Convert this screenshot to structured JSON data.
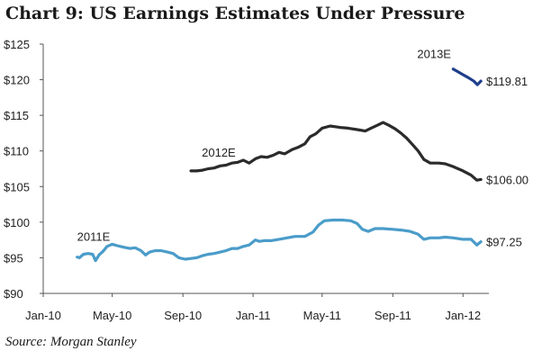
{
  "title": "Chart 9:  US Earnings Estimates Under Pressure",
  "source": "Source: Morgan Stanley",
  "chart_data": {
    "type": "line",
    "title": "Chart 9:  US Earnings Estimates Under Pressure",
    "xlabel": "",
    "ylabel": "",
    "x_ticks": [
      "Jan-10",
      "May-10",
      "Sep-10",
      "Jan-11",
      "May-11",
      "Sep-11",
      "Jan-12"
    ],
    "x_tick_dates": [
      "2010-01-01",
      "2010-05-01",
      "2010-09-01",
      "2011-01-01",
      "2011-05-01",
      "2011-09-01",
      "2012-01-01"
    ],
    "xlim": [
      "2010-01-01",
      "2012-02-15"
    ],
    "y_ticks": [
      "$90",
      "$95",
      "$100",
      "$105",
      "$110",
      "$115",
      "$120",
      "$125"
    ],
    "ylim": [
      90,
      125
    ],
    "grid": false,
    "series": [
      {
        "name": "2011E",
        "color": "#4a9cc9",
        "end_label": "$97.25",
        "points": [
          [
            "2010-03-01",
            95.1
          ],
          [
            "2010-03-05",
            95.0
          ],
          [
            "2010-03-12",
            95.5
          ],
          [
            "2010-03-20",
            95.6
          ],
          [
            "2010-03-28",
            95.5
          ],
          [
            "2010-04-02",
            94.6
          ],
          [
            "2010-04-08",
            95.4
          ],
          [
            "2010-04-15",
            95.9
          ],
          [
            "2010-04-22",
            96.6
          ],
          [
            "2010-05-01",
            96.9
          ],
          [
            "2010-05-10",
            96.7
          ],
          [
            "2010-05-20",
            96.5
          ],
          [
            "2010-06-01",
            96.3
          ],
          [
            "2010-06-10",
            96.4
          ],
          [
            "2010-06-20",
            96.0
          ],
          [
            "2010-06-28",
            95.4
          ],
          [
            "2010-07-05",
            95.8
          ],
          [
            "2010-07-15",
            96.0
          ],
          [
            "2010-07-25",
            96.0
          ],
          [
            "2010-08-05",
            95.8
          ],
          [
            "2010-08-15",
            95.6
          ],
          [
            "2010-08-25",
            95.0
          ],
          [
            "2010-09-05",
            94.8
          ],
          [
            "2010-09-15",
            94.9
          ],
          [
            "2010-09-25",
            95.0
          ],
          [
            "2010-10-05",
            95.3
          ],
          [
            "2010-10-15",
            95.5
          ],
          [
            "2010-10-25",
            95.6
          ],
          [
            "2010-11-05",
            95.8
          ],
          [
            "2010-11-15",
            96.0
          ],
          [
            "2010-11-25",
            96.3
          ],
          [
            "2010-12-05",
            96.3
          ],
          [
            "2010-12-15",
            96.6
          ],
          [
            "2010-12-25",
            96.8
          ],
          [
            "2011-01-05",
            97.5
          ],
          [
            "2011-01-12",
            97.3
          ],
          [
            "2011-01-20",
            97.4
          ],
          [
            "2011-02-01",
            97.4
          ],
          [
            "2011-02-15",
            97.6
          ],
          [
            "2011-03-01",
            97.8
          ],
          [
            "2011-03-15",
            98.0
          ],
          [
            "2011-04-01",
            98.0
          ],
          [
            "2011-04-15",
            98.6
          ],
          [
            "2011-04-25",
            99.6
          ],
          [
            "2011-05-05",
            100.2
          ],
          [
            "2011-05-20",
            100.3
          ],
          [
            "2011-06-05",
            100.3
          ],
          [
            "2011-06-20",
            100.2
          ],
          [
            "2011-07-01",
            99.8
          ],
          [
            "2011-07-10",
            99.0
          ],
          [
            "2011-07-20",
            98.7
          ],
          [
            "2011-08-01",
            99.1
          ],
          [
            "2011-08-15",
            99.1
          ],
          [
            "2011-09-01",
            99.0
          ],
          [
            "2011-09-15",
            98.9
          ],
          [
            "2011-10-01",
            98.7
          ],
          [
            "2011-10-15",
            98.3
          ],
          [
            "2011-10-25",
            97.6
          ],
          [
            "2011-11-05",
            97.8
          ],
          [
            "2011-11-20",
            97.8
          ],
          [
            "2011-12-01",
            97.9
          ],
          [
            "2011-12-15",
            97.8
          ],
          [
            "2012-01-01",
            97.6
          ],
          [
            "2012-01-15",
            97.6
          ],
          [
            "2012-01-25",
            96.8
          ],
          [
            "2012-02-01",
            97.25
          ]
        ]
      },
      {
        "name": "2012E",
        "color": "#2b2b2b",
        "end_label": "$106.00",
        "points": [
          [
            "2010-09-15",
            107.2
          ],
          [
            "2010-09-25",
            107.2
          ],
          [
            "2010-10-05",
            107.3
          ],
          [
            "2010-10-15",
            107.5
          ],
          [
            "2010-10-25",
            107.6
          ],
          [
            "2010-11-05",
            107.9
          ],
          [
            "2010-11-15",
            108.0
          ],
          [
            "2010-11-25",
            108.3
          ],
          [
            "2010-12-05",
            108.4
          ],
          [
            "2010-12-15",
            108.7
          ],
          [
            "2010-12-25",
            108.3
          ],
          [
            "2011-01-05",
            108.9
          ],
          [
            "2011-01-15",
            109.2
          ],
          [
            "2011-01-25",
            109.1
          ],
          [
            "2011-02-05",
            109.4
          ],
          [
            "2011-02-15",
            109.8
          ],
          [
            "2011-02-25",
            109.6
          ],
          [
            "2011-03-10",
            110.2
          ],
          [
            "2011-03-20",
            110.5
          ],
          [
            "2011-04-01",
            111.0
          ],
          [
            "2011-04-10",
            112.0
          ],
          [
            "2011-04-20",
            112.4
          ],
          [
            "2011-05-01",
            113.2
          ],
          [
            "2011-05-15",
            113.5
          ],
          [
            "2011-06-01",
            113.3
          ],
          [
            "2011-06-15",
            113.2
          ],
          [
            "2011-07-01",
            113.0
          ],
          [
            "2011-07-15",
            112.8
          ],
          [
            "2011-07-25",
            113.2
          ],
          [
            "2011-08-05",
            113.6
          ],
          [
            "2011-08-15",
            114.0
          ],
          [
            "2011-08-25",
            113.6
          ],
          [
            "2011-09-05",
            113.1
          ],
          [
            "2011-09-15",
            112.5
          ],
          [
            "2011-09-25",
            111.8
          ],
          [
            "2011-10-05",
            110.9
          ],
          [
            "2011-10-15",
            110.0
          ],
          [
            "2011-10-25",
            108.8
          ],
          [
            "2011-11-05",
            108.3
          ],
          [
            "2011-11-20",
            108.3
          ],
          [
            "2011-12-01",
            108.2
          ],
          [
            "2011-12-15",
            107.8
          ],
          [
            "2012-01-01",
            107.2
          ],
          [
            "2012-01-15",
            106.6
          ],
          [
            "2012-01-25",
            105.9
          ],
          [
            "2012-02-01",
            106.0
          ]
        ]
      },
      {
        "name": "2013E",
        "color": "#1f3f8c",
        "end_label": "$119.81",
        "points": [
          [
            "2011-12-15",
            121.5
          ],
          [
            "2012-01-01",
            120.7
          ],
          [
            "2012-01-10",
            120.3
          ],
          [
            "2012-01-20",
            119.8
          ],
          [
            "2012-01-26",
            119.3
          ],
          [
            "2012-02-01",
            119.81
          ]
        ]
      }
    ]
  }
}
